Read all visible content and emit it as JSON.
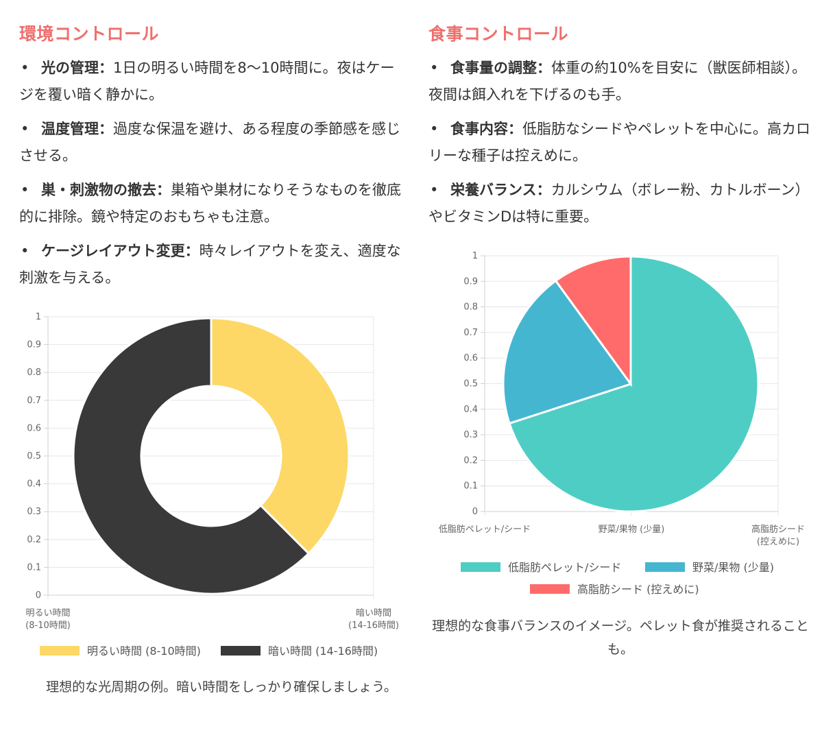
{
  "left": {
    "title": "環境コントロール",
    "items": [
      {
        "term": "光の管理：",
        "text": "1日の明るい時間を8〜10時間に。夜はケージを覆い暗く静かに。"
      },
      {
        "term": "温度管理：",
        "text": "過度な保温を避け、ある程度の季節感を感じさせる。"
      },
      {
        "term": "巣・刺激物の撤去：",
        "text": "巣箱や巣材になりそうなものを徹底的に排除。鏡や特定のおもちゃも注意。"
      },
      {
        "term": "ケージレイアウト変更：",
        "text": "時々レイアウトを変え、適度な刺激を与える。"
      }
    ],
    "caption": "理想的な光周期の例。暗い時間をしっかり確保しましょう。"
  },
  "right": {
    "title": "食事コントロール",
    "items": [
      {
        "term": "食事量の調整：",
        "text": "体重の約10%を目安に（獣医師相談）。夜間は餌入れを下げるのも手。"
      },
      {
        "term": "食事内容：",
        "text": "低脂肪なシードやペレットを中心に。高カロリーな種子は控えめに。"
      },
      {
        "term": "栄養バランス：",
        "text": "カルシウム（ボレー粉、カトルボーン）やビタミンDは特に重要。"
      }
    ],
    "caption": "理想的な食事バランスのイメージ。ペレット食が推奨されることも。"
  },
  "chart_data": [
    {
      "type": "doughnut",
      "categories": [
        "明るい時間\n(8-10時間)",
        "暗い時間\n(14-16時間)"
      ],
      "legend": [
        "明るい時間 (8-10時間)",
        "暗い時間 (14-16時間)"
      ],
      "values": [
        9,
        15
      ],
      "colors": [
        "#fdd867",
        "#393939"
      ],
      "yticks": [
        "0",
        "0.1",
        "0.2",
        "0.3",
        "0.4",
        "0.5",
        "0.6",
        "0.7",
        "0.8",
        "0.9",
        "1"
      ],
      "ylim": [
        0,
        1
      ],
      "grid": true,
      "legend_position": "bottom"
    },
    {
      "type": "pie",
      "categories": [
        "低脂肪ペレット/シード",
        "野菜/果物 (少量)",
        "高脂肪シード\n(控えめに)"
      ],
      "legend": [
        "低脂肪ペレット/シード",
        "野菜/果物 (少量)",
        "高脂肪シード (控えめに)"
      ],
      "values": [
        70,
        20,
        10
      ],
      "colors": [
        "#4ecdc4",
        "#45b6d0",
        "#ff6b6b"
      ],
      "yticks": [
        "0",
        "0.1",
        "0.2",
        "0.3",
        "0.4",
        "0.5",
        "0.6",
        "0.7",
        "0.8",
        "0.9",
        "1"
      ],
      "ylim": [
        0,
        1
      ],
      "grid": true,
      "legend_position": "bottom"
    }
  ]
}
